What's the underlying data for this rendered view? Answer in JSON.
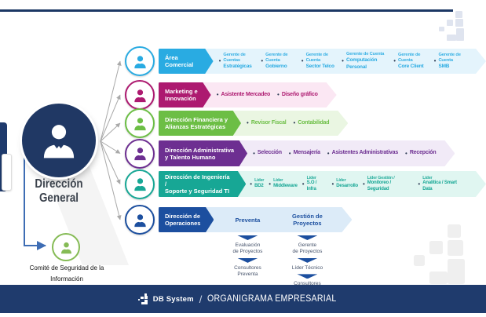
{
  "root": {
    "title": "Dirección\nGeneral",
    "circle_color": "#203864"
  },
  "comite": {
    "label": "Comité de Seguridad de la\nInformación",
    "color": "#85bb55"
  },
  "connector_color": "#3e6db4",
  "fan_line_color": "#a9a9a9",
  "top_rule_color": "#1b3764",
  "watermark_top_color": "#dfe4ef",
  "watermark_bottom_color": "#efefef",
  "rows": [
    {
      "id": "area-comercial",
      "label": "Área Comercial",
      "color": "#29abe2",
      "band": "#e4f4fc",
      "items": [
        [
          "Gerente de Cuentas",
          "Estratégicas"
        ],
        [
          "Gerente de Cuenta",
          "Gobierno"
        ],
        [
          "Gerente de Cuenta",
          "Sector Telco"
        ],
        [
          "Gerente de Cuenta",
          "Computación Personal"
        ],
        [
          "Gerente de Cuenta",
          "Core Client"
        ],
        [
          "Gerente de Cuenta",
          "SMB"
        ]
      ]
    },
    {
      "id": "marketing-innovacion",
      "label": "Marketing e\nInnovación",
      "color": "#ad1a70",
      "band": "#fbe7f3",
      "items": [
        [
          "Asistente Mercadeo"
        ],
        [
          "Diseño gráfico"
        ]
      ]
    },
    {
      "id": "direccion-financiera",
      "label": "Dirección Financiera y\nAlianzas Estratégicas",
      "color": "#6cbe45",
      "band": "#eaf6e2",
      "items": [
        [
          "Revisor Fiscal"
        ],
        [
          "Contabilidad"
        ]
      ]
    },
    {
      "id": "direccion-administrativa",
      "label": "Dirección Administrativa\ny Talento Humano",
      "color": "#6d2f91",
      "band": "#f1eaf7",
      "items": [
        [
          "Selección"
        ],
        [
          "Mensajería"
        ],
        [
          "Asistentes Administrativas"
        ],
        [
          "Recepción"
        ]
      ]
    },
    {
      "id": "direccion-ingenieria",
      "label": "Dirección de Ingeniería /\nSoporte y Seguridad TI",
      "color": "#17a795",
      "band": "#e0f6f1",
      "items": [
        [
          "Líder",
          "BD2"
        ],
        [
          "Líder",
          "Middleware"
        ],
        [
          "Líder",
          "S.O / Infra"
        ],
        [
          "Líder",
          "Desarrollo"
        ],
        [
          "Líder Gestión /",
          "Monitoreo / Seguridad"
        ],
        [
          "Líder",
          "Analítica / Smart Data"
        ]
      ]
    },
    {
      "id": "direccion-operaciones",
      "label": "Dirección de\nOperaciones",
      "color": "#1c4f9f",
      "band": "#dcebf8",
      "columns": [
        {
          "header": "Preventa",
          "items": [
            "Evaluación\nde Proyectos",
            "Consultores\nPreventa"
          ]
        },
        {
          "header": "Gestión de\nProyectos",
          "items": [
            "Gerente\nde Proyectos",
            "Líder Técnico",
            "Consultores"
          ]
        }
      ]
    }
  ],
  "footer": {
    "brand": "DB System",
    "divider": "/",
    "title": "ORGANIGRAMA EMPRESARIAL",
    "bg": "#1f3b6d"
  }
}
